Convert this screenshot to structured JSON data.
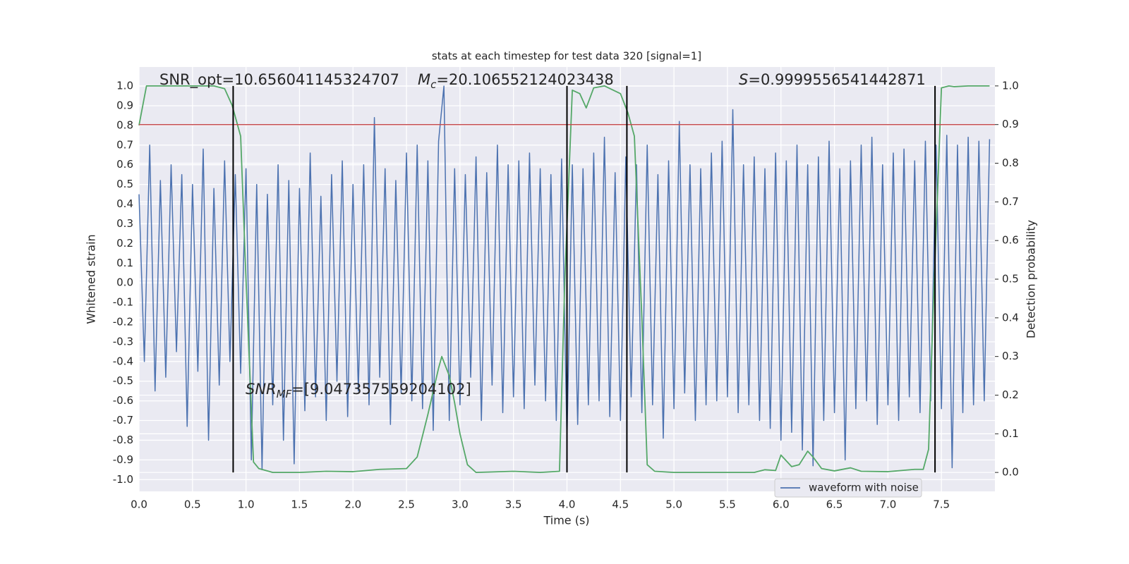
{
  "chart_data": {
    "type": "line",
    "title": "stats at each timestep for test data 320 [signal=1]",
    "xlabel": "Time (s)",
    "ylabel": "Whitened strain",
    "y2label": "Detection probability",
    "xlim": [
      0,
      8.0
    ],
    "ylim": [
      -1.06,
      1.097
    ],
    "y2lim": [
      -0.049,
      1.049
    ],
    "xticks": [
      {
        "value": 0,
        "label": "0.0"
      },
      0.5,
      {
        "value": 1,
        "label": "1.0"
      },
      1.5,
      {
        "value": 2,
        "label": "2.0"
      },
      2.5,
      {
        "value": 3,
        "label": "3.0"
      },
      3.5,
      {
        "value": 4,
        "label": "4.0"
      },
      4.5,
      {
        "value": 5,
        "label": "5.0"
      },
      5.5,
      {
        "value": 6,
        "label": "6.0"
      },
      6.5,
      {
        "value": 7,
        "label": "7.0"
      },
      7.5
    ],
    "yticks": [
      {
        "value": -1,
        "label": "-1.0"
      },
      -0.9,
      -0.8,
      -0.7,
      -0.6,
      -0.5,
      -0.4,
      -0.3,
      -0.2,
      -0.1,
      {
        "value": 0,
        "label": "0.0"
      },
      0.1,
      0.2,
      0.3,
      0.4,
      0.5,
      0.6,
      0.7,
      0.8,
      0.9,
      {
        "value": 1,
        "label": "1.0"
      }
    ],
    "y2ticks": [
      {
        "value": 0,
        "label": "0.0"
      },
      0.1,
      0.2,
      0.3,
      0.4,
      0.5,
      0.6,
      0.7,
      0.8,
      0.9,
      {
        "value": 1,
        "label": "1.0"
      }
    ],
    "grid": true,
    "legend": "lower right",
    "series": [
      {
        "name": "waveform with noise",
        "color": "#4c72b0",
        "x": [
          0,
          0.05,
          0.1,
          0.15,
          0.2,
          0.25,
          0.3,
          0.35,
          0.4,
          0.45,
          0.5,
          0.55,
          0.6,
          0.65,
          0.7,
          0.75,
          0.8,
          0.85,
          0.9,
          0.95,
          1,
          1.05,
          1.1,
          1.15,
          1.2,
          1.25,
          1.3,
          1.35,
          1.4,
          1.45,
          1.5,
          1.55,
          1.6,
          1.65,
          1.7,
          1.75,
          1.8,
          1.85,
          1.9,
          1.95,
          2,
          2.05,
          2.1,
          2.15,
          2.2,
          2.25,
          2.3,
          2.35,
          2.4,
          2.45,
          2.5,
          2.55,
          2.6,
          2.65,
          2.7,
          2.75,
          2.8,
          2.85,
          2.9,
          2.95,
          3,
          3.05,
          3.1,
          3.15,
          3.2,
          3.25,
          3.3,
          3.35,
          3.4,
          3.45,
          3.5,
          3.55,
          3.6,
          3.65,
          3.7,
          3.75,
          3.8,
          3.85,
          3.9,
          3.95,
          4,
          4.05,
          4.1,
          4.15,
          4.2,
          4.25,
          4.3,
          4.35,
          4.4,
          4.45,
          4.5,
          4.55,
          4.6,
          4.65,
          4.7,
          4.75,
          4.8,
          4.85,
          4.9,
          4.95,
          5,
          5.05,
          5.1,
          5.15,
          5.2,
          5.25,
          5.3,
          5.35,
          5.4,
          5.45,
          5.5,
          5.55,
          5.6,
          5.65,
          5.7,
          5.75,
          5.8,
          5.85,
          5.9,
          5.95,
          6,
          6.05,
          6.1,
          6.15,
          6.2,
          6.25,
          6.3,
          6.35,
          6.4,
          6.45,
          6.5,
          6.55,
          6.6,
          6.65,
          6.7,
          6.75,
          6.8,
          6.85,
          6.9,
          6.95,
          7,
          7.05,
          7.1,
          7.15,
          7.2,
          7.25,
          7.3,
          7.35,
          7.4,
          7.45,
          7.5,
          7.55,
          7.6,
          7.65,
          7.7,
          7.75,
          7.8,
          7.85,
          7.9,
          7.95
        ],
        "values": [
          0.45,
          -0.4,
          0.7,
          -0.55,
          0.52,
          -0.48,
          0.6,
          -0.35,
          0.55,
          -0.73,
          0.5,
          -0.45,
          0.68,
          -0.8,
          0.48,
          -0.52,
          0.62,
          -0.4,
          0.55,
          -0.46,
          0.58,
          -0.9,
          0.5,
          -0.95,
          0.45,
          -0.62,
          0.6,
          -0.8,
          0.52,
          -0.92,
          0.48,
          -0.65,
          0.66,
          -0.58,
          0.44,
          -0.7,
          0.55,
          -0.5,
          0.62,
          -0.68,
          0.5,
          -0.55,
          0.6,
          -0.62,
          0.84,
          -0.48,
          0.58,
          -0.72,
          0.52,
          -0.56,
          0.66,
          -0.6,
          0.7,
          -0.64,
          0.62,
          -0.75,
          0.72,
          1.0,
          -0.7,
          0.58,
          -0.62,
          0.55,
          -0.48,
          0.64,
          -0.7,
          0.56,
          -0.52,
          0.7,
          -0.66,
          0.6,
          -0.58,
          0.62,
          -0.64,
          0.66,
          -0.52,
          0.58,
          -0.6,
          0.55,
          -0.7,
          0.63,
          -0.8,
          0.6,
          -0.72,
          0.58,
          -0.62,
          0.66,
          -0.6,
          0.74,
          -0.68,
          0.56,
          -0.7,
          0.64,
          -0.58,
          0.6,
          -0.66,
          0.7,
          -0.62,
          0.55,
          -0.79,
          0.62,
          -0.64,
          0.82,
          -0.56,
          0.6,
          -0.7,
          0.58,
          -0.62,
          0.66,
          -0.6,
          0.72,
          -0.58,
          0.88,
          -0.66,
          0.6,
          -0.62,
          0.64,
          -0.7,
          0.58,
          -0.74,
          0.66,
          -0.8,
          0.62,
          -0.76,
          0.7,
          -0.85,
          0.6,
          -0.93,
          0.64,
          -0.7,
          0.72,
          -0.66,
          0.58,
          -0.9,
          0.62,
          -0.64,
          0.7,
          -0.6,
          0.74,
          -0.72,
          0.6,
          -0.62,
          0.66,
          -0.7,
          0.68,
          -0.58,
          0.62,
          -0.66,
          0.72,
          -0.6,
          0.7,
          -0.64,
          0.75,
          -0.94,
          0.7,
          -0.66,
          0.74,
          -0.62,
          0.72,
          -0.6,
          0.73
        ]
      },
      {
        "color": "#55a868",
        "axis": "y2",
        "x": [
          0,
          0.07,
          0.7,
          0.8,
          0.87,
          0.95,
          1.0,
          1.07,
          1.12,
          1.25,
          1.5,
          1.75,
          2.0,
          2.25,
          2.5,
          2.6,
          2.7,
          2.8,
          2.83,
          2.9,
          2.95,
          3.0,
          3.07,
          3.15,
          3.5,
          3.75,
          3.93,
          3.98,
          4.05,
          4.12,
          4.18,
          4.25,
          4.35,
          4.5,
          4.57,
          4.63,
          4.7,
          4.75,
          4.82,
          5.0,
          5.75,
          5.85,
          5.95,
          6.0,
          6.1,
          6.17,
          6.25,
          6.3,
          6.38,
          6.5,
          6.65,
          6.75,
          7.0,
          7.25,
          7.33,
          7.38,
          7.42,
          7.5,
          7.57,
          7.62,
          7.75,
          7.95
        ],
        "values": [
          0.898,
          1.0,
          1.0,
          0.993,
          0.95,
          0.87,
          0.5,
          0.027,
          0.01,
          0.0,
          0.0,
          0.003,
          0.002,
          0.008,
          0.01,
          0.04,
          0.15,
          0.27,
          0.3,
          0.25,
          0.18,
          0.1,
          0.02,
          0.0,
          0.003,
          0.0,
          0.003,
          0.5,
          0.989,
          0.98,
          0.943,
          0.995,
          1.0,
          0.98,
          0.93,
          0.87,
          0.4,
          0.02,
          0.003,
          0.0,
          0.0,
          0.007,
          0.005,
          0.045,
          0.015,
          0.02,
          0.055,
          0.04,
          0.01,
          0.004,
          0.012,
          0.003,
          0.002,
          0.008,
          0.008,
          0.06,
          0.4,
          0.995,
          1.0,
          0.998,
          1.0,
          1.0
        ]
      }
    ],
    "hline": {
      "y": 0.9,
      "axis": "y2",
      "color": "#c44e52"
    },
    "vlines": {
      "x": [
        0.88,
        4.0,
        4.56,
        7.44
      ],
      "ymin": 0,
      "ymax": 1,
      "axis": "y2",
      "color": "#000000"
    },
    "annotations": [
      {
        "parts": [
          {
            "text": "SNR_opt=10.656041145324707"
          }
        ]
      },
      {
        "parts": [
          {
            "text": "M",
            "italic": true
          },
          {
            "text": "c",
            "italic": true,
            "sub": true
          },
          {
            "text": "=20.106552124023438"
          }
        ]
      },
      {
        "parts": [
          {
            "text": "S",
            "italic": true
          },
          {
            "text": "=0.9999556541442871"
          }
        ]
      },
      {
        "parts": [
          {
            "text": "SNR",
            "italic": true
          },
          {
            "text": "MF",
            "italic": true,
            "sub": true
          },
          {
            "text": "=[9.047357559204102]"
          }
        ]
      }
    ]
  }
}
